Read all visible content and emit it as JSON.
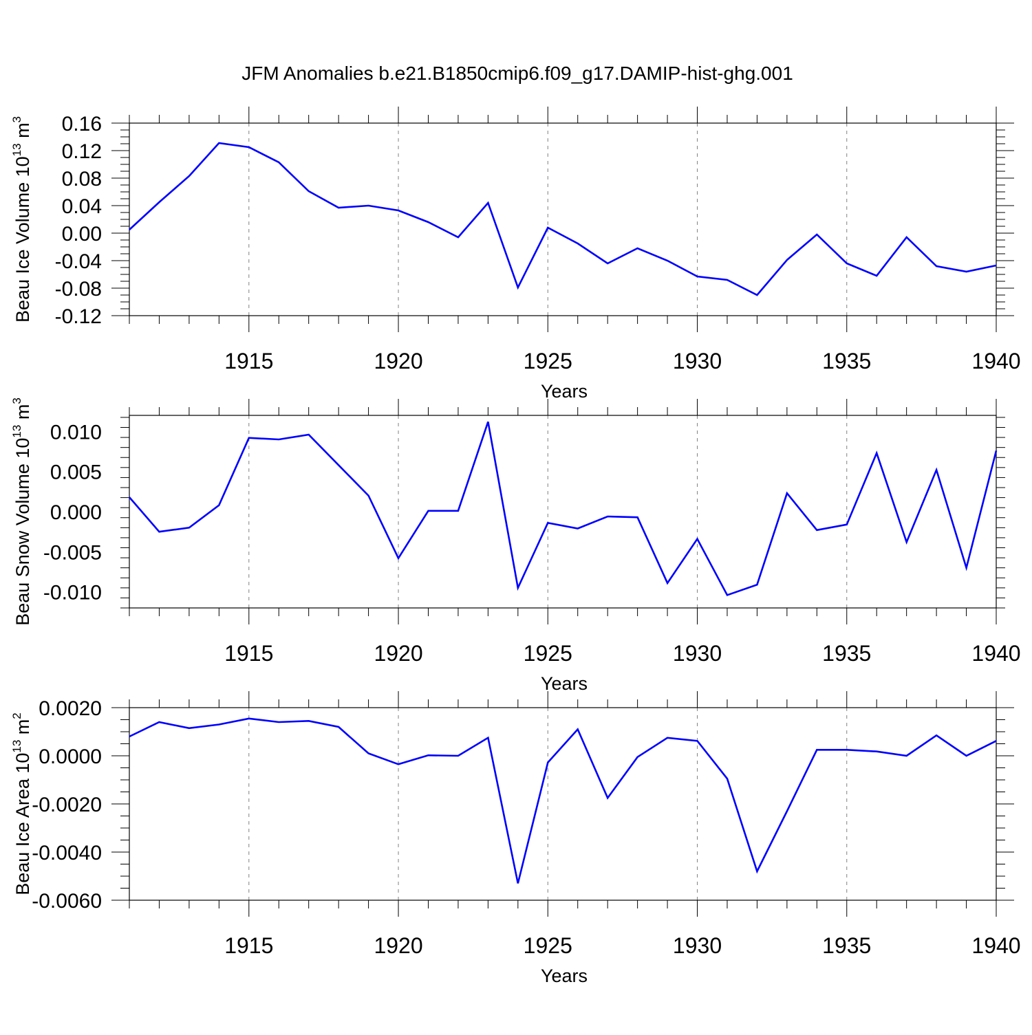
{
  "figure": {
    "title": "JFM Anomalies b.e21.B1850cmip6.f09_g17.DAMIP-hist-ghg.001"
  },
  "colors": {
    "line": "#0000ff",
    "axis": "#000000",
    "grid": "#808080"
  },
  "chart_data": [
    {
      "type": "line",
      "name": "ice-volume",
      "ylabel": {
        "main": "Beau Ice Volume 10",
        "sup1": "13",
        "mid": " m",
        "sup2": "3"
      },
      "xlabel": "Years",
      "xlim": [
        1911,
        1940
      ],
      "ylim": [
        -0.12,
        0.16
      ],
      "yticks": [
        -0.12,
        -0.08,
        -0.04,
        0.0,
        0.04,
        0.08,
        0.12,
        0.16
      ],
      "ytick_labels": [
        "-0.12",
        "-0.08",
        "-0.04",
        "0.00",
        "0.04",
        "0.08",
        "0.12",
        "0.16"
      ],
      "xticks": [
        1915,
        1920,
        1925,
        1930,
        1935,
        1940
      ],
      "xtick_labels": [
        "1915",
        "1920",
        "1925",
        "1930",
        "1935",
        "1940"
      ],
      "grid": "vertical dashed at major x ticks",
      "x": [
        1911,
        1912,
        1913,
        1914,
        1915,
        1916,
        1917,
        1918,
        1919,
        1920,
        1921,
        1922,
        1923,
        1924,
        1925,
        1926,
        1927,
        1928,
        1929,
        1930,
        1931,
        1932,
        1933,
        1934,
        1935,
        1936,
        1937,
        1938,
        1939,
        1940
      ],
      "values": [
        0.005,
        0.045,
        0.083,
        0.131,
        0.125,
        0.103,
        0.061,
        0.037,
        0.04,
        0.033,
        0.016,
        -0.006,
        0.044,
        -0.079,
        0.008,
        -0.015,
        -0.044,
        -0.022,
        -0.04,
        -0.063,
        -0.068,
        -0.09,
        -0.039,
        -0.002,
        -0.044,
        -0.062,
        -0.006,
        -0.048,
        -0.056,
        -0.047
      ]
    },
    {
      "type": "line",
      "name": "snow-volume",
      "ylabel": {
        "main": "Beau Snow Volume 10",
        "sup1": "13",
        "mid": " m",
        "sup2": "3"
      },
      "xlabel": "Years",
      "xlim": [
        1911,
        1940
      ],
      "ylim": [
        -0.012,
        0.012
      ],
      "yticks": [
        -0.01,
        -0.005,
        0.0,
        0.005,
        0.01
      ],
      "ytick_labels": [
        "-0.010",
        "-0.005",
        "0.000",
        "0.005",
        "0.010"
      ],
      "xticks": [
        1915,
        1920,
        1925,
        1930,
        1935,
        1940
      ],
      "xtick_labels": [
        "1915",
        "1920",
        "1925",
        "1930",
        "1935",
        "1940"
      ],
      "grid": "vertical dashed at major x ticks",
      "x": [
        1911,
        1912,
        1913,
        1914,
        1915,
        1916,
        1917,
        1918,
        1919,
        1920,
        1921,
        1922,
        1923,
        1924,
        1925,
        1926,
        1927,
        1928,
        1929,
        1930,
        1931,
        1932,
        1933,
        1934,
        1935,
        1936,
        1937,
        1938,
        1939,
        1940
      ],
      "values": [
        0.0018,
        -0.0025,
        -0.002,
        0.0008,
        0.0092,
        0.009,
        0.0096,
        0.0058,
        0.002,
        -0.0058,
        0.0001,
        0.0001,
        0.0112,
        -0.0095,
        -0.0014,
        -0.0021,
        -0.0006,
        -0.0007,
        -0.0089,
        -0.0034,
        -0.0104,
        -0.0091,
        0.0023,
        -0.0023,
        -0.0016,
        0.0073,
        -0.0038,
        0.0052,
        -0.007,
        0.0076
      ]
    },
    {
      "type": "line",
      "name": "ice-area",
      "ylabel": {
        "main": "Beau Ice Area 10",
        "sup1": "13",
        "mid": " m",
        "sup2": "2"
      },
      "xlabel": "Years",
      "xlim": [
        1911,
        1940
      ],
      "ylim": [
        -0.006,
        0.002
      ],
      "yticks": [
        -0.006,
        -0.004,
        -0.002,
        0.0,
        0.002
      ],
      "ytick_labels": [
        "-0.0060",
        "-0.0040",
        "-0.0020",
        "0.0000",
        "0.0020"
      ],
      "xticks": [
        1915,
        1920,
        1925,
        1930,
        1935,
        1940
      ],
      "xtick_labels": [
        "1915",
        "1920",
        "1925",
        "1930",
        "1935",
        "1940"
      ],
      "grid": "vertical dashed at major x ticks",
      "x": [
        1911,
        1912,
        1913,
        1914,
        1915,
        1916,
        1917,
        1918,
        1919,
        1920,
        1921,
        1922,
        1923,
        1924,
        1925,
        1926,
        1927,
        1928,
        1929,
        1930,
        1931,
        1932,
        1933,
        1934,
        1935,
        1936,
        1937,
        1938,
        1939,
        1940
      ],
      "values": [
        0.0008,
        0.0014,
        0.00115,
        0.0013,
        0.00155,
        0.0014,
        0.00145,
        0.0012,
        0.0001,
        -0.00035,
        2e-05,
        0.0,
        0.00075,
        -0.0053,
        -0.00028,
        0.0011,
        -0.00175,
        -5e-05,
        0.00075,
        0.00062,
        -0.00095,
        -0.0048,
        -0.0023,
        0.00025,
        0.00025,
        0.00018,
        0.0,
        0.00085,
        0.0,
        0.00062
      ]
    }
  ]
}
